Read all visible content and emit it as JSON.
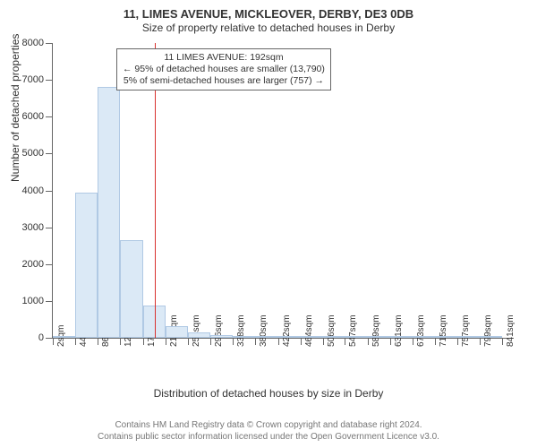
{
  "title": "11, LIMES AVENUE, MICKLEOVER, DERBY, DE3 0DB",
  "subtitle": "Size of property relative to detached houses in Derby",
  "ylabel": "Number of detached properties",
  "xlabel": "Distribution of detached houses by size in Derby",
  "chart": {
    "type": "histogram",
    "x_min": 2,
    "x_max": 862,
    "bin_width": 42,
    "y_min": 0,
    "y_max": 8000,
    "y_ticks": [
      0,
      1000,
      2000,
      3000,
      4000,
      5000,
      6000,
      7000,
      8000
    ],
    "x_ticks": [
      2,
      44,
      86,
      128,
      170,
      212,
      254,
      296,
      338,
      380,
      422,
      464,
      506,
      547,
      589,
      631,
      673,
      715,
      757,
      799,
      841
    ],
    "x_tick_suffix": "sqm",
    "bar_fill": "#dbe9f6",
    "bar_stroke": "#b0c9e4",
    "background_color": "#ffffff",
    "axis_color": "#666666",
    "bars": [
      {
        "x": 2,
        "count": 20
      },
      {
        "x": 44,
        "count": 3930
      },
      {
        "x": 86,
        "count": 6800
      },
      {
        "x": 128,
        "count": 2640
      },
      {
        "x": 170,
        "count": 870
      },
      {
        "x": 212,
        "count": 320
      },
      {
        "x": 254,
        "count": 140
      },
      {
        "x": 296,
        "count": 80
      },
      {
        "x": 338,
        "count": 50
      },
      {
        "x": 380,
        "count": 30
      },
      {
        "x": 422,
        "count": 15
      },
      {
        "x": 464,
        "count": 10
      },
      {
        "x": 506,
        "count": 6
      },
      {
        "x": 547,
        "count": 4
      },
      {
        "x": 589,
        "count": 4
      },
      {
        "x": 631,
        "count": 3
      },
      {
        "x": 673,
        "count": 2
      },
      {
        "x": 715,
        "count": 2
      },
      {
        "x": 757,
        "count": 1
      },
      {
        "x": 799,
        "count": 1
      }
    ],
    "marker": {
      "x": 192,
      "color": "#d9322e"
    }
  },
  "annotation": {
    "lines": [
      "11 LIMES AVENUE: 192sqm",
      "← 95% of detached houses are smaller (13,790)",
      "5% of semi-detached houses are larger (757) →"
    ]
  },
  "footer": {
    "line1": "Contains HM Land Registry data © Crown copyright and database right 2024.",
    "line2": "Contains public sector information licensed under the Open Government Licence v3.0."
  }
}
